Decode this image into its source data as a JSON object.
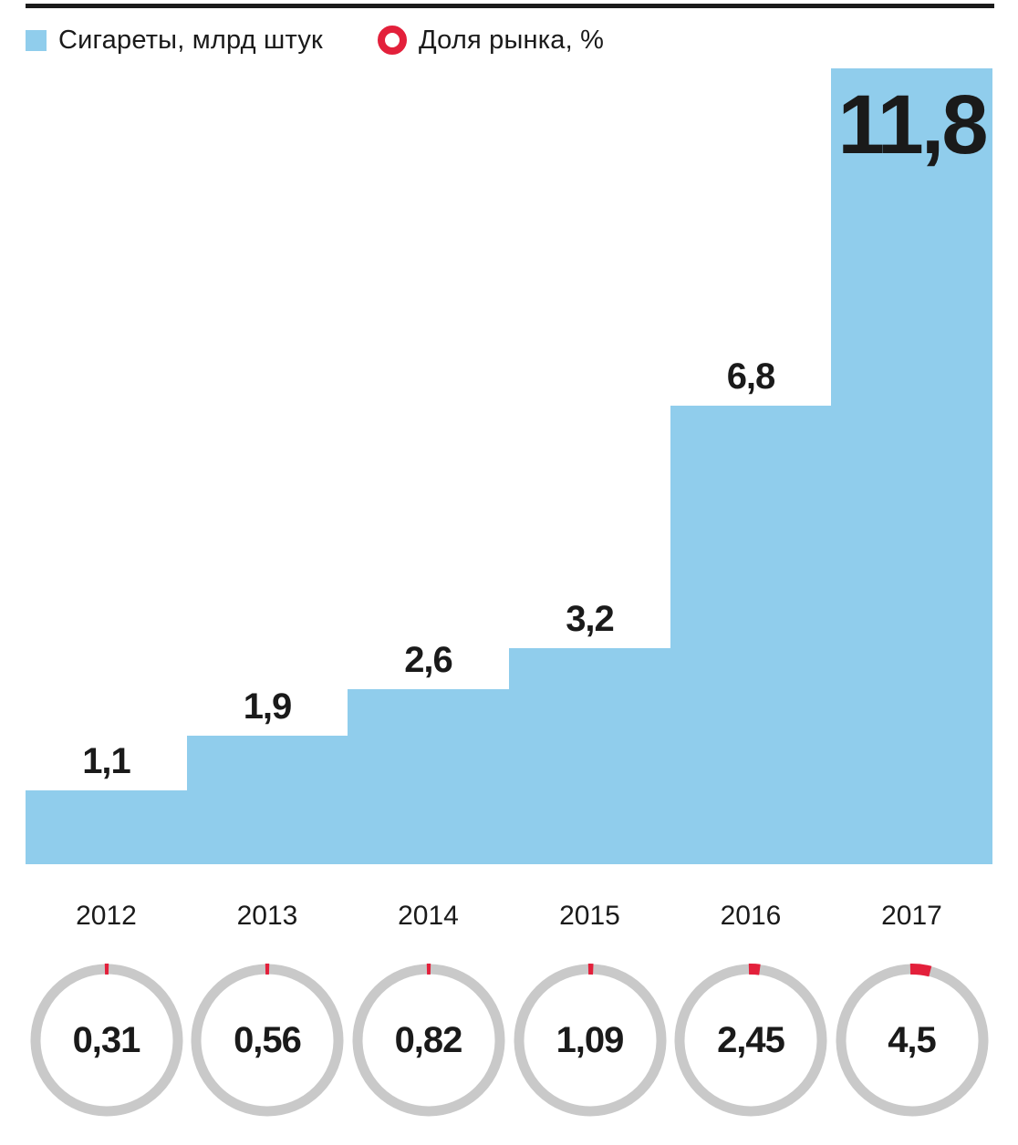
{
  "legend": {
    "bars_label": "Сигареты, млрд штук",
    "share_label": "Доля рынка, %"
  },
  "colors": {
    "bar": "#90CDEC",
    "red": "#E3203B",
    "ring_gray": "#C9C9C9",
    "text": "#1A1A1A"
  },
  "chart_data": {
    "type": "bar",
    "title": "",
    "categories": [
      "2012",
      "2013",
      "2014",
      "2015",
      "2016",
      "2017"
    ],
    "series": [
      {
        "name": "Сигареты, млрд штук",
        "values": [
          1.1,
          1.9,
          2.6,
          3.2,
          6.8,
          11.8
        ],
        "labels": [
          "1,1",
          "1,9",
          "2,6",
          "3,2",
          "6,8",
          "11,8"
        ]
      },
      {
        "name": "Доля рынка, %",
        "values": [
          0.31,
          0.56,
          0.82,
          1.09,
          2.45,
          4.5
        ],
        "labels": [
          "0,31",
          "0,56",
          "0,82",
          "1,09",
          "2,45",
          "4,5"
        ],
        "display": "donut-gauge"
      }
    ],
    "ylim": [
      0,
      11.8
    ],
    "xlabel": "",
    "ylabel": "",
    "grid": false,
    "legend_position": "top"
  }
}
